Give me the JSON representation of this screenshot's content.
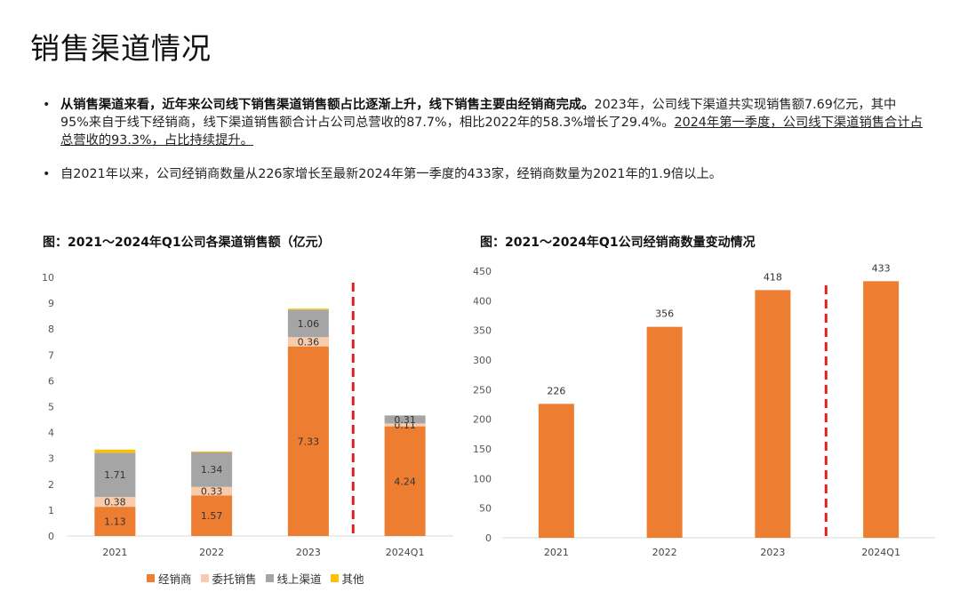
{
  "page_title": "销售渠道情况",
  "bullets": [
    {
      "bold": "从销售渠道来看，近年来公司线下销售渠道销售额占比逐渐上升，线下销售主要由经销商完成。",
      "text": "2023年，公司线下渠道共实现销售额7.69亿元，其中95%来自于线下经销商，线下渠道销售额合计占公司总营收的87.7%，相比2022年的58.3%增长了29.4%。",
      "underlined": "2024年第一季度，公司线下渠道销售合计占总营收的93.3%，占比持续提升。"
    },
    {
      "text": "自2021年以来，公司经销商数量从226家增长至最新2024年第一季度的433家，经销商数量为2021年的1.9倍以上。"
    }
  ],
  "chart_data": [
    {
      "type": "bar",
      "stacked": true,
      "title": "图：2021～2024年Q1公司各渠道销售额（亿元）",
      "categories": [
        "2021",
        "2022",
        "2023",
        "2024Q1"
      ],
      "series": [
        {
          "name": "经销商",
          "color": "#ED7D31",
          "values": [
            1.13,
            1.57,
            7.33,
            4.24
          ],
          "labels": [
            "1.13",
            "1.57",
            "7.33",
            "4.24"
          ]
        },
        {
          "name": "委托销售",
          "color": "#F8CBAD",
          "values": [
            0.38,
            0.33,
            0.36,
            0.11
          ],
          "labels": [
            "0.38",
            "0.33",
            "0.36",
            "0.11"
          ]
        },
        {
          "name": "线上渠道",
          "color": "#A5A5A5",
          "values": [
            1.71,
            1.34,
            1.06,
            0.31
          ],
          "labels": [
            "1.71",
            "1.34",
            "1.06",
            "0.31"
          ]
        },
        {
          "name": "其他",
          "color": "#FFC000",
          "values": [
            0.12,
            0.03,
            0.04,
            0.0
          ],
          "labels": []
        }
      ],
      "yticks": [
        "0",
        "1",
        "2",
        "3",
        "4",
        "5",
        "6",
        "7",
        "8",
        "9",
        "10"
      ],
      "ylim": [
        0,
        10
      ],
      "divider_after_category": 2,
      "divider_color": "#E02020",
      "legend": "bottom"
    },
    {
      "type": "bar",
      "title": "图：2021～2024年Q1公司经销商数量变动情况",
      "categories": [
        "2021",
        "2022",
        "2023",
        "2024Q1"
      ],
      "values": [
        226,
        356,
        418,
        433
      ],
      "labels": [
        "226",
        "356",
        "418",
        "433"
      ],
      "color": "#ED7D31",
      "yticks": [
        "0",
        "50",
        "100",
        "150",
        "200",
        "250",
        "300",
        "350",
        "400",
        "450"
      ],
      "ylim": [
        0,
        450
      ],
      "divider_after_category": 2,
      "divider_color": "#E02020"
    }
  ]
}
